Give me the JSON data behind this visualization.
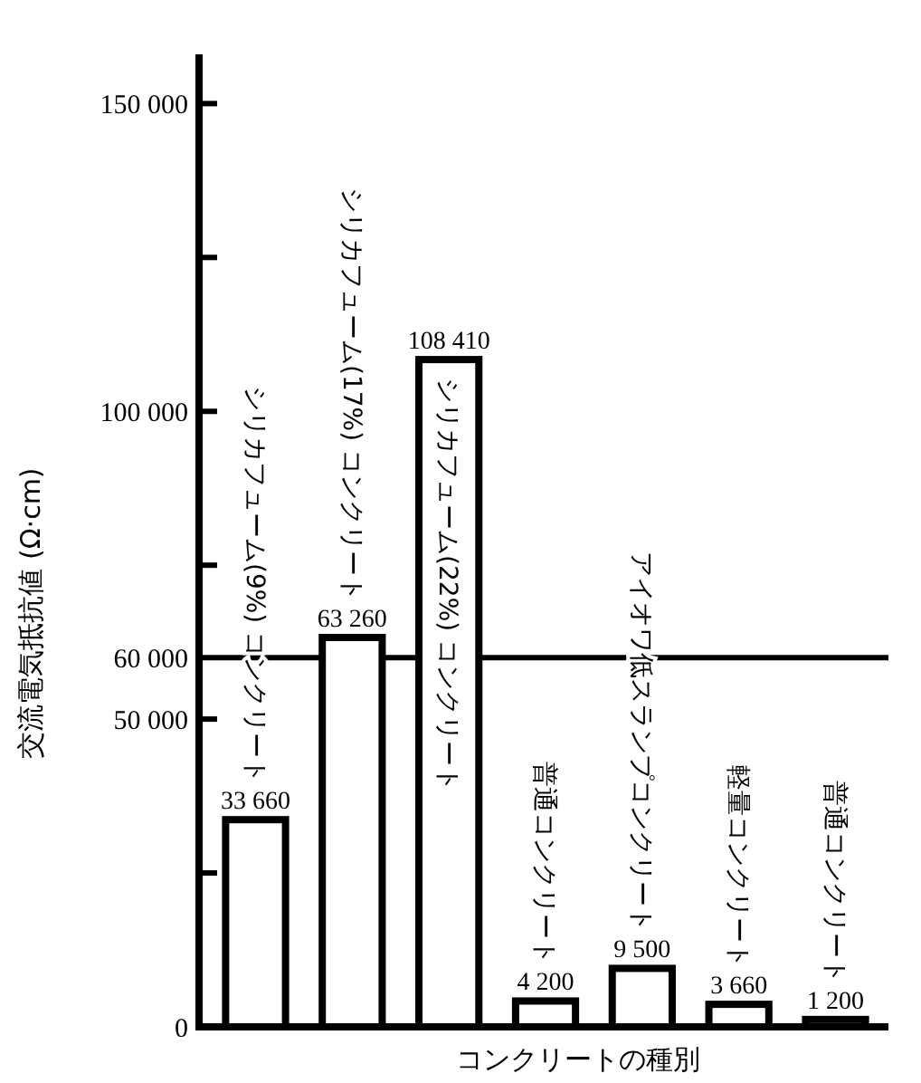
{
  "chart_data": {
    "type": "bar",
    "xlabel": "コンクリートの種別",
    "ylabel": "交流電気抵抗値 (Ω·cm)",
    "categories": [
      "シリカフューム(9%) コンクリート",
      "シリカフューム(17%) コンクリート",
      "シリカフューム(22%) コンクリート",
      "普通コンクリート",
      "アイオワ低スランプコンクリート",
      "軽量コンクリート",
      "普通コンクリート"
    ],
    "values": [
      33660,
      63260,
      108410,
      4200,
      9500,
      3660,
      1200
    ],
    "value_labels": [
      "33 660",
      "63 260",
      "108 410",
      "4 200",
      "9 500",
      "3 660",
      "1 200"
    ],
    "color": "#ffffff",
    "ylim": [
      0,
      158000
    ],
    "yticks": [
      {
        "value": 0,
        "label": "0"
      },
      {
        "value": 25000,
        "label": null
      },
      {
        "value": 50000,
        "label": "50 000"
      },
      {
        "value": 75000,
        "label": null
      },
      {
        "value": 100000,
        "label": "100 000"
      },
      {
        "value": 125000,
        "label": null
      },
      {
        "value": 150000,
        "label": "150 000"
      }
    ],
    "ref_lines": [
      {
        "axis": "y",
        "value": 60000,
        "label": "60 000"
      }
    ],
    "grid": false
  }
}
